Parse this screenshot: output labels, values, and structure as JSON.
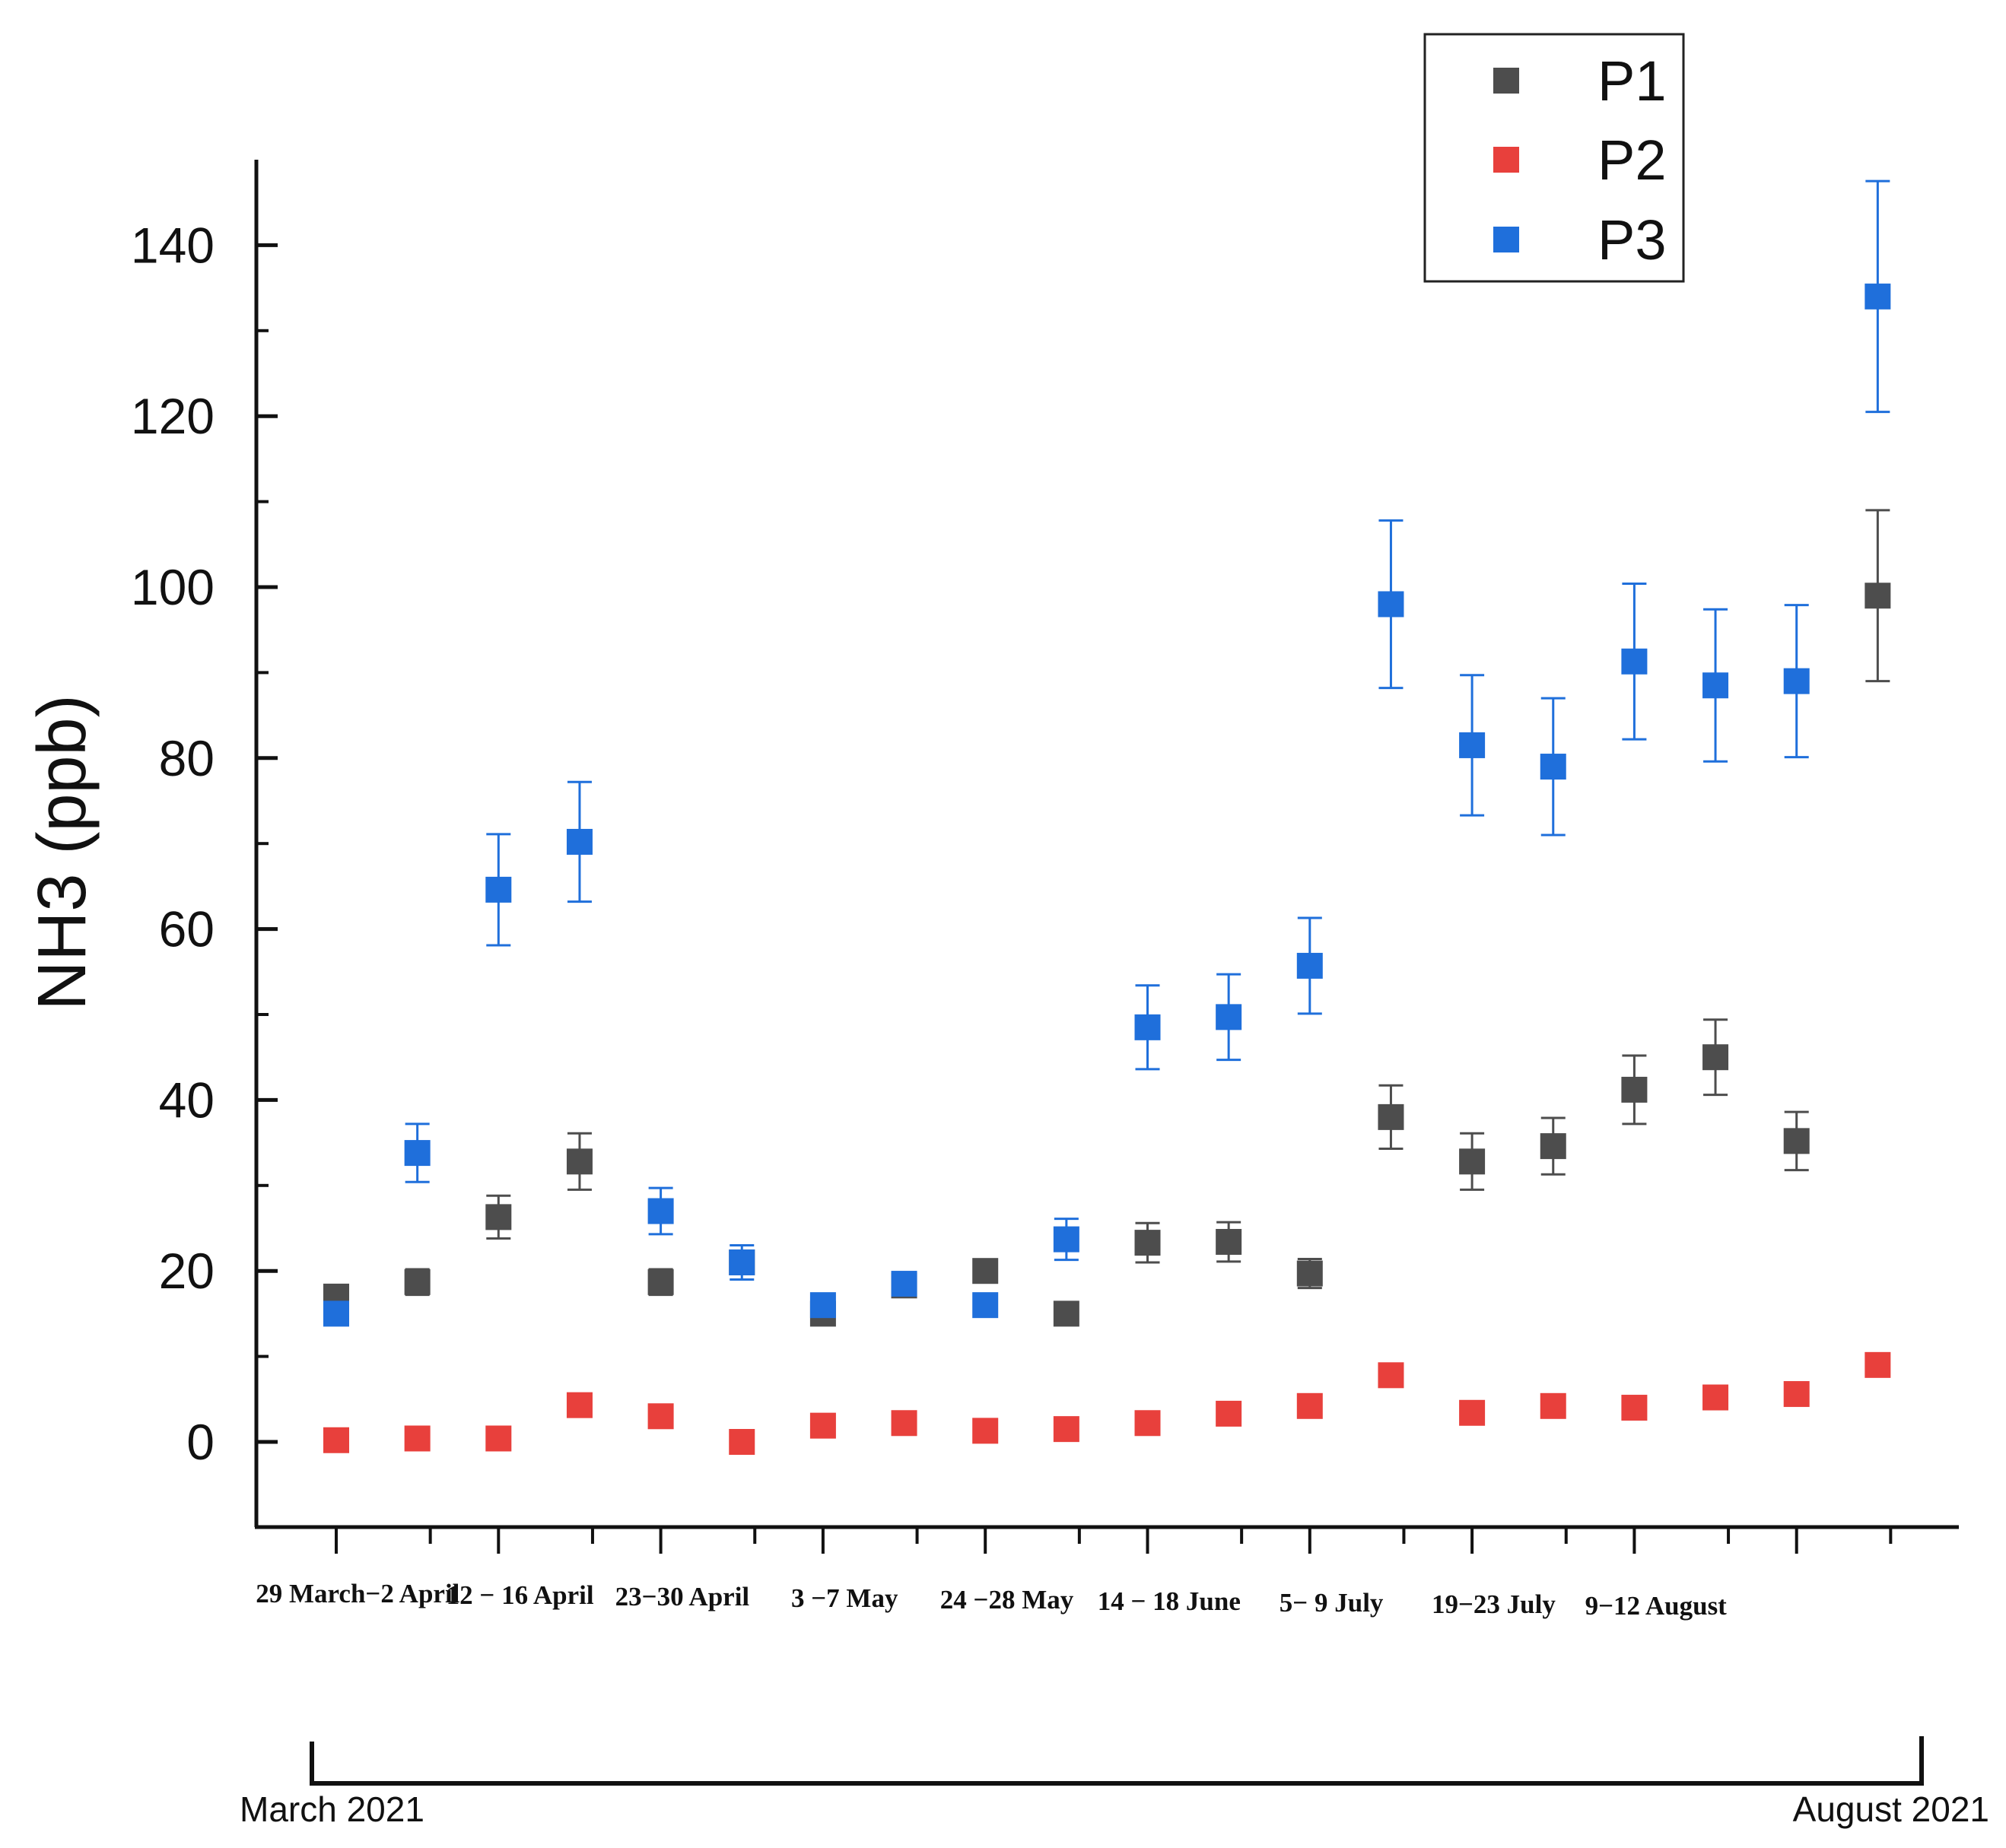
{
  "chart_data": {
    "type": "scatter",
    "title": "",
    "xlabel": "",
    "ylabel": "NH3 (ppb)",
    "ylim": [
      -10,
      150
    ],
    "yticks": [
      0,
      20,
      40,
      60,
      80,
      100,
      120,
      140
    ],
    "grid": false,
    "legend_position": "top-right",
    "x_index": [
      1,
      2,
      3,
      4,
      5,
      6,
      7,
      8,
      9,
      10,
      11,
      12,
      13,
      14,
      15,
      16,
      17,
      18,
      19,
      20
    ],
    "category_labels": [
      "29 March−2 April",
      "12 − 16 April",
      "23−30 April",
      "3 −7 May",
      "24 −28 May",
      "14 − 18 June",
      "5− 9 July",
      "19−23 July",
      "9−12  August"
    ],
    "series": [
      {
        "name": "P1",
        "color": "#4d4d4d",
        "values": [
          17,
          18.7,
          26.3,
          32.8,
          18.7,
          21,
          15,
          18.3,
          20,
          15,
          23.3,
          23.4,
          19.7,
          38,
          32.8,
          34.6,
          41.2,
          45,
          35.2,
          99
        ],
        "errors": [
          null,
          1.5,
          2.5,
          3.3,
          1.5,
          null,
          null,
          null,
          null,
          null,
          2.3,
          2.3,
          1.7,
          3.7,
          3.3,
          3.3,
          4,
          4.4,
          3.4,
          10
        ]
      },
      {
        "name": "P2",
        "color": "#e8403c",
        "values": [
          0.2,
          0.4,
          0.4,
          4.3,
          3,
          0,
          1.9,
          2.2,
          1.3,
          1.5,
          2.2,
          3.3,
          4.2,
          7.8,
          3.4,
          4.2,
          4,
          5.2,
          5.6,
          9
        ],
        "errors": [
          null,
          null,
          null,
          null,
          null,
          null,
          null,
          null,
          null,
          null,
          null,
          null,
          null,
          null,
          null,
          null,
          null,
          null,
          null,
          null
        ]
      },
      {
        "name": "P3",
        "color": "#1f6fdb",
        "values": [
          15,
          33.8,
          64.6,
          70.2,
          27,
          21,
          16,
          18.5,
          16,
          23.7,
          48.5,
          49.7,
          55.7,
          98,
          81.5,
          79,
          91.3,
          88.5,
          89,
          134
        ],
        "errors": [
          null,
          3.4,
          6.5,
          7,
          2.7,
          2,
          null,
          null,
          null,
          2.4,
          4.9,
          5,
          5.6,
          9.8,
          8.2,
          8,
          9.1,
          8.9,
          8.9,
          13.5
        ]
      }
    ],
    "period_start": "March 2021",
    "period_end": "August 2021"
  }
}
